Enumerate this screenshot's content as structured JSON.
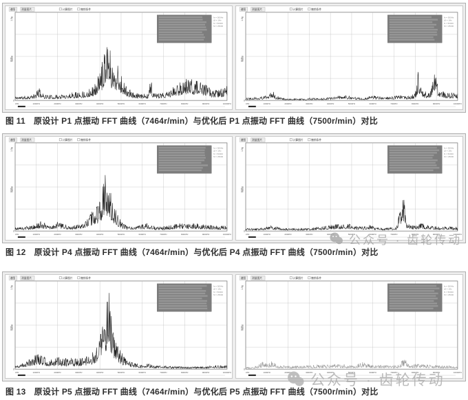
{
  "figures": [
    {
      "caption": "图 11　原设计 P1 点振动 FFT 曲线（7464r/min）与优化后 P1 点振动 FFT 曲线（7500r/min）对比"
    },
    {
      "caption": "图 12　原设计 P4 点振动 FFT 曲线（7464r/min）与优化后 P4 点振动 FFT 曲线（7500r/min）对比"
    },
    {
      "caption": "图 13　原设计 P5 点振动 FFT 曲线（7464r/min）与优化后 P5 点振动 FFT 曲线（7500r/min）对比"
    }
  ],
  "watermark": {
    "text": "公众号 · 齿轮传动",
    "icon": "wechat-icon"
  },
  "chart_common": {
    "toolbar_items": [
      "谱图",
      "测量图片"
    ],
    "toolbar_checkboxes": [
      "计算图片",
      "撤销条件"
    ],
    "x_ticks": [
      "0Hz",
      "1000Hz",
      "2000Hz",
      "3000Hz",
      "4000Hz",
      "5000Hz",
      "6000Hz",
      "7000Hz",
      "8000Hz",
      "9000Hz",
      "10000Hz"
    ],
    "y_top_label": "1.5g",
    "y_bottom_label": "0",
    "y_axis_title": "幅值g",
    "legend_stats": [
      "fs = 500Hz",
      "Δf = 1Hz",
      "N = 50000",
      "M = 25000"
    ],
    "legend_rows": 10,
    "grid": true,
    "legend_position": "top-right"
  },
  "chart_data": [
    {
      "type": "line",
      "name": "P1 原设计 7464r/min FFT",
      "x_unit": "Hz",
      "xlim": [
        0,
        10000
      ],
      "color": "#1f1f1f",
      "seed": 11,
      "envelope": [
        [
          0,
          0.05
        ],
        [
          400,
          0.05
        ],
        [
          900,
          0.07
        ],
        [
          1150,
          0.14
        ],
        [
          1300,
          0.08
        ],
        [
          1700,
          0.06
        ],
        [
          2200,
          0.07
        ],
        [
          2700,
          0.09
        ],
        [
          3100,
          0.1
        ],
        [
          3500,
          0.13
        ],
        [
          3800,
          0.2
        ],
        [
          4100,
          0.42
        ],
        [
          4350,
          0.88
        ],
        [
          4500,
          0.55
        ],
        [
          4650,
          0.38
        ],
        [
          4800,
          0.42
        ],
        [
          5000,
          0.3
        ],
        [
          5200,
          0.18
        ],
        [
          5500,
          0.1
        ],
        [
          5900,
          0.07
        ],
        [
          6300,
          0.08
        ],
        [
          6400,
          0.32
        ],
        [
          6500,
          0.08
        ],
        [
          6900,
          0.08
        ],
        [
          7300,
          0.12
        ],
        [
          7600,
          0.18
        ],
        [
          7900,
          0.22
        ],
        [
          8200,
          0.26
        ],
        [
          8500,
          0.24
        ],
        [
          8800,
          0.2
        ],
        [
          9100,
          0.16
        ],
        [
          9400,
          0.12
        ],
        [
          9700,
          0.13
        ],
        [
          10000,
          0.17
        ]
      ]
    },
    {
      "type": "line",
      "name": "P1 优化后 7500r/min FFT",
      "x_unit": "Hz",
      "xlim": [
        0,
        10000
      ],
      "color": "#1f1f1f",
      "seed": 22,
      "envelope": [
        [
          0,
          0.03
        ],
        [
          300,
          0.04
        ],
        [
          700,
          0.04
        ],
        [
          1100,
          0.06
        ],
        [
          1250,
          0.13
        ],
        [
          1400,
          0.05
        ],
        [
          2000,
          0.02
        ],
        [
          2600,
          0.02
        ],
        [
          3200,
          0.03
        ],
        [
          3800,
          0.03
        ],
        [
          4300,
          0.05
        ],
        [
          4700,
          0.06
        ],
        [
          5100,
          0.04
        ],
        [
          5600,
          0.03
        ],
        [
          6000,
          0.06
        ],
        [
          6400,
          0.04
        ],
        [
          6900,
          0.05
        ],
        [
          7300,
          0.06
        ],
        [
          7700,
          0.05
        ],
        [
          8000,
          0.08
        ],
        [
          8150,
          0.34
        ],
        [
          8300,
          0.12
        ],
        [
          8500,
          0.1
        ],
        [
          8700,
          0.08
        ],
        [
          8900,
          0.4
        ],
        [
          9100,
          0.12
        ],
        [
          9400,
          0.1
        ],
        [
          9700,
          0.09
        ],
        [
          10000,
          0.08
        ]
      ]
    },
    {
      "type": "line",
      "name": "P4 原设计 7464r/min FFT",
      "x_unit": "Hz",
      "xlim": [
        0,
        10000
      ],
      "color": "#1f1f1f",
      "seed": 33,
      "envelope": [
        [
          0,
          0.04
        ],
        [
          400,
          0.05
        ],
        [
          800,
          0.06
        ],
        [
          1200,
          0.11
        ],
        [
          1400,
          0.09
        ],
        [
          1700,
          0.07
        ],
        [
          2000,
          0.1
        ],
        [
          2300,
          0.08
        ],
        [
          2600,
          0.06
        ],
        [
          3000,
          0.07
        ],
        [
          3300,
          0.1
        ],
        [
          3600,
          0.22
        ],
        [
          3900,
          0.3
        ],
        [
          4100,
          0.45
        ],
        [
          4250,
          0.68
        ],
        [
          4400,
          0.55
        ],
        [
          4550,
          0.4
        ],
        [
          4700,
          0.28
        ],
        [
          4900,
          0.16
        ],
        [
          5100,
          0.08
        ],
        [
          5500,
          0.05
        ],
        [
          5900,
          0.07
        ],
        [
          6200,
          0.09
        ],
        [
          6600,
          0.05
        ],
        [
          7000,
          0.05
        ],
        [
          7400,
          0.07
        ],
        [
          7800,
          0.09
        ],
        [
          8200,
          0.08
        ],
        [
          8600,
          0.09
        ],
        [
          9000,
          0.07
        ],
        [
          9400,
          0.06
        ],
        [
          9700,
          0.06
        ],
        [
          10000,
          0.07
        ]
      ]
    },
    {
      "type": "line",
      "name": "P4 优化后 7500r/min FFT",
      "x_unit": "Hz",
      "xlim": [
        0,
        10000
      ],
      "color": "#1f1f1f",
      "seed": 44,
      "envelope": [
        [
          0,
          0.03
        ],
        [
          400,
          0.03
        ],
        [
          900,
          0.04
        ],
        [
          1200,
          0.07
        ],
        [
          1400,
          0.05
        ],
        [
          2000,
          0.03
        ],
        [
          2600,
          0.03
        ],
        [
          3100,
          0.04
        ],
        [
          3600,
          0.05
        ],
        [
          4000,
          0.07
        ],
        [
          4400,
          0.08
        ],
        [
          4800,
          0.09
        ],
        [
          5100,
          0.06
        ],
        [
          5500,
          0.05
        ],
        [
          5800,
          0.08
        ],
        [
          6200,
          0.04
        ],
        [
          6700,
          0.04
        ],
        [
          7100,
          0.05
        ],
        [
          7450,
          0.4
        ],
        [
          7600,
          0.08
        ],
        [
          8000,
          0.06
        ],
        [
          8300,
          0.09
        ],
        [
          8700,
          0.06
        ],
        [
          9100,
          0.05
        ],
        [
          9500,
          0.06
        ],
        [
          10000,
          0.04
        ]
      ]
    },
    {
      "type": "line",
      "name": "P5 原设计 7464r/min FFT",
      "x_unit": "Hz",
      "xlim": [
        0,
        10000
      ],
      "color": "#1f1f1f",
      "seed": 55,
      "envelope": [
        [
          0,
          0.05
        ],
        [
          400,
          0.08
        ],
        [
          800,
          0.14
        ],
        [
          1100,
          0.18
        ],
        [
          1400,
          0.14
        ],
        [
          1700,
          0.12
        ],
        [
          2000,
          0.14
        ],
        [
          2300,
          0.12
        ],
        [
          2600,
          0.13
        ],
        [
          2900,
          0.12
        ],
        [
          3200,
          0.13
        ],
        [
          3500,
          0.15
        ],
        [
          3800,
          0.25
        ],
        [
          4050,
          0.45
        ],
        [
          4250,
          0.6
        ],
        [
          4400,
          0.97
        ],
        [
          4550,
          0.55
        ],
        [
          4700,
          0.38
        ],
        [
          4850,
          0.28
        ],
        [
          5000,
          0.2
        ],
        [
          5200,
          0.13
        ],
        [
          5500,
          0.08
        ],
        [
          5900,
          0.05
        ],
        [
          6200,
          0.07
        ],
        [
          6600,
          0.04
        ],
        [
          7000,
          0.04
        ],
        [
          7500,
          0.03
        ],
        [
          8000,
          0.03
        ],
        [
          8500,
          0.03
        ],
        [
          9000,
          0.03
        ],
        [
          9500,
          0.05
        ],
        [
          10000,
          0.04
        ]
      ]
    },
    {
      "type": "line",
      "name": "P5 优化后 7500r/min FFT",
      "x_unit": "Hz",
      "xlim": [
        0,
        10000
      ],
      "color": "#9c9c9c",
      "seed": 66,
      "envelope": [
        [
          0,
          0.02
        ],
        [
          400,
          0.03
        ],
        [
          800,
          0.08
        ],
        [
          1000,
          0.06
        ],
        [
          1250,
          0.1
        ],
        [
          1450,
          0.05
        ],
        [
          1900,
          0.04
        ],
        [
          2400,
          0.04
        ],
        [
          2900,
          0.05
        ],
        [
          3400,
          0.05
        ],
        [
          3900,
          0.05
        ],
        [
          4300,
          0.06
        ],
        [
          4700,
          0.05
        ],
        [
          5100,
          0.04
        ],
        [
          5500,
          0.08
        ],
        [
          5900,
          0.05
        ],
        [
          6300,
          0.05
        ],
        [
          6800,
          0.04
        ],
        [
          7200,
          0.05
        ],
        [
          7500,
          0.13
        ],
        [
          7700,
          0.05
        ],
        [
          8200,
          0.06
        ],
        [
          8700,
          0.05
        ],
        [
          9200,
          0.04
        ],
        [
          9600,
          0.04
        ],
        [
          10000,
          0.03
        ]
      ]
    }
  ]
}
